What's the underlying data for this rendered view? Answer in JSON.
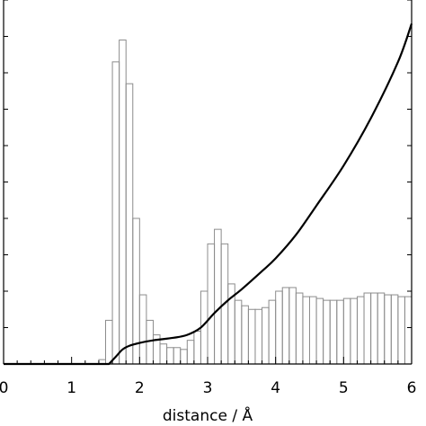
{
  "chart_data": {
    "type": "bar",
    "title": "",
    "xlabel": "distance / Å",
    "ylabel": "",
    "xlim": [
      0,
      6
    ],
    "ylim": [
      0,
      1.0
    ],
    "grid": false,
    "x_ticks": [
      "0",
      "1",
      "2",
      "3",
      "4",
      "5",
      "6"
    ],
    "histogram": {
      "bin_width": 0.1,
      "bin_starts": [
        1.4,
        1.5,
        1.6,
        1.7,
        1.8,
        1.9,
        2.0,
        2.1,
        2.2,
        2.3,
        2.4,
        2.5,
        2.6,
        2.7,
        2.8,
        2.9,
        3.0,
        3.1,
        3.2,
        3.3,
        3.4,
        3.5,
        3.6,
        3.7,
        3.8,
        3.9,
        4.0,
        4.1,
        4.2,
        4.3,
        4.4,
        4.5,
        4.6,
        4.7,
        4.8,
        4.9,
        5.0,
        5.1,
        5.2,
        5.3,
        5.4,
        5.5,
        5.6,
        5.7,
        5.8,
        5.9
      ],
      "values": [
        0.012,
        0.12,
        0.83,
        0.89,
        0.77,
        0.4,
        0.19,
        0.12,
        0.08,
        0.055,
        0.045,
        0.045,
        0.04,
        0.065,
        0.09,
        0.2,
        0.33,
        0.37,
        0.33,
        0.22,
        0.175,
        0.16,
        0.15,
        0.15,
        0.155,
        0.175,
        0.2,
        0.21,
        0.21,
        0.195,
        0.185,
        0.185,
        0.18,
        0.175,
        0.175,
        0.175,
        0.18,
        0.18,
        0.185,
        0.195,
        0.195,
        0.195,
        0.19,
        0.19,
        0.185,
        0.185
      ]
    },
    "series": [
      {
        "type": "line",
        "x": [
          1.55,
          1.65,
          1.75,
          1.85,
          2.0,
          2.2,
          2.5,
          2.7,
          2.9,
          3.1,
          3.3,
          3.5,
          3.8,
          4.0,
          4.3,
          4.6,
          5.0,
          5.4,
          5.8,
          6.0
        ],
        "y": [
          0.0,
          0.02,
          0.04,
          0.05,
          0.058,
          0.065,
          0.072,
          0.08,
          0.1,
          0.14,
          0.175,
          0.205,
          0.255,
          0.29,
          0.355,
          0.435,
          0.545,
          0.675,
          0.83,
          0.935
        ]
      }
    ]
  }
}
